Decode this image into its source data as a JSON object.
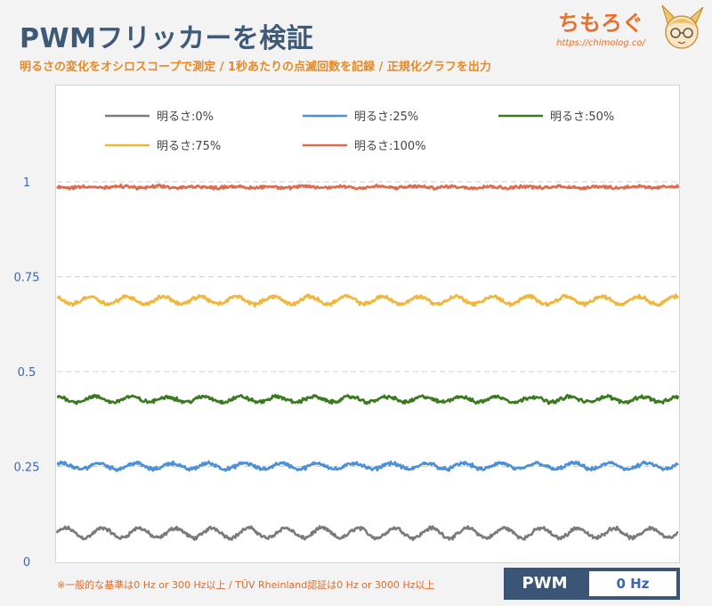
{
  "header": {
    "title": "PWMフリッカーを検証",
    "subtitle": "明るさの変化をオシロスコープで測定 / 1秒あたりの点滅回数を記録 / 正規化グラフを出力",
    "brand_name": "ちもろぐ",
    "brand_url": "https://chimolog.co/"
  },
  "footer": {
    "note": "※一般的な基準は0 Hz or 300 Hz以上 / TÜV Rheinland認証は0 Hz or 3000 Hz以上",
    "pwm_label": "PWM",
    "pwm_value": "0 Hz"
  },
  "chart_data": {
    "type": "line",
    "title": "",
    "xlabel": "",
    "ylabel": "",
    "ylim": [
      0,
      1.2
    ],
    "yticks": [
      0,
      0.25,
      0.5,
      0.75,
      1
    ],
    "ytick_labels": [
      "0",
      "0.25",
      "0.5",
      "0.75",
      "1"
    ],
    "grid": "horizontal dashed",
    "legend_position": "top",
    "series": [
      {
        "name": "明るさ:0%",
        "color": "#7a7a7a",
        "mean": 0.075,
        "ripple": 0.013,
        "noise": 0.006,
        "cycles": 17
      },
      {
        "name": "明るさ:25%",
        "color": "#4a90d9",
        "mean": 0.251,
        "ripple": 0.008,
        "noise": 0.006,
        "cycles": 17
      },
      {
        "name": "明るさ:50%",
        "color": "#3a7a1e",
        "mean": 0.427,
        "ripple": 0.007,
        "noise": 0.006,
        "cycles": 17
      },
      {
        "name": "明るさ:75%",
        "color": "#f2b53a",
        "mean": 0.688,
        "ripple": 0.01,
        "noise": 0.006,
        "cycles": 17
      },
      {
        "name": "明るさ:100%",
        "color": "#e06a4e",
        "mean": 0.986,
        "ripple": 0.002,
        "noise": 0.005,
        "cycles": 17
      }
    ]
  }
}
